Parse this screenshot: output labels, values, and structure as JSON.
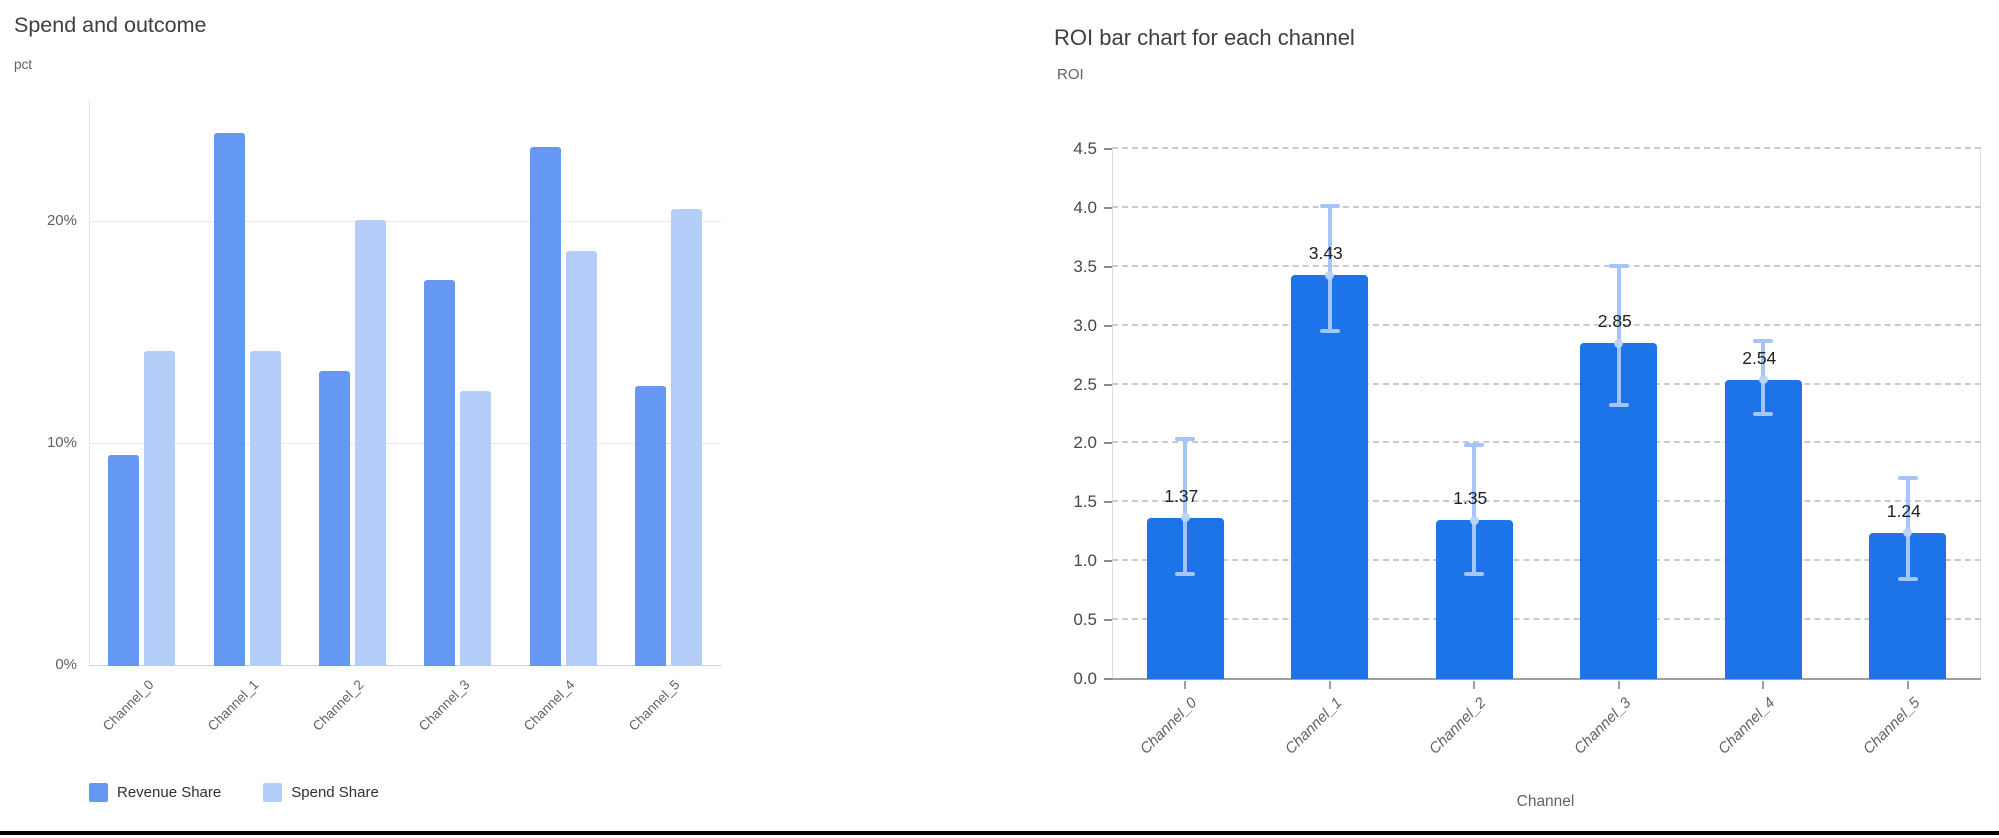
{
  "page": {
    "background": "#ffffff",
    "bottom_rule_color": "#020202"
  },
  "chart_data": [
    {
      "type": "bar",
      "title": "Spend and outcome",
      "ylabel": "pct",
      "xlabel": "",
      "categories": [
        "Channel_0",
        "Channel_1",
        "Channel_2",
        "Channel_3",
        "Channel_4",
        "Channel_5"
      ],
      "series": [
        {
          "name": "Revenue Share",
          "color": "#6498f3",
          "values": [
            9.5,
            24.0,
            13.3,
            17.4,
            23.4,
            12.6
          ]
        },
        {
          "name": "Spend Share",
          "color": "#b5cdf9",
          "values": [
            14.2,
            14.2,
            20.1,
            12.4,
            18.7,
            20.6
          ]
        }
      ],
      "y_ticks": [
        {
          "value": 0,
          "label": "0%"
        },
        {
          "value": 10,
          "label": "10%"
        },
        {
          "value": 20,
          "label": "20%"
        }
      ],
      "ylim": [
        0,
        25.5
      ],
      "unit": "%",
      "grid": "solid-horizontal",
      "legend_position": "bottom-left"
    },
    {
      "type": "bar",
      "title": "ROI bar chart for each channel",
      "ylabel": "ROI",
      "xlabel": "Channel",
      "categories": [
        "Channel_0",
        "Channel_1",
        "Channel_2",
        "Channel_3",
        "Channel_4",
        "Channel_5"
      ],
      "values": [
        1.37,
        3.43,
        1.35,
        2.85,
        2.54,
        1.24
      ],
      "value_labels": [
        "1.37",
        "3.43",
        "1.35",
        "2.85",
        "2.54",
        "1.24"
      ],
      "error_low": [
        0.88,
        2.95,
        0.88,
        2.32,
        2.24,
        0.84
      ],
      "error_high": [
        2.04,
        4.02,
        1.99,
        3.51,
        2.87,
        1.71
      ],
      "y_ticks": [
        {
          "value": 0.0,
          "label": "0.0"
        },
        {
          "value": 0.5,
          "label": "0.5"
        },
        {
          "value": 1.0,
          "label": "1.0"
        },
        {
          "value": 1.5,
          "label": "1.5"
        },
        {
          "value": 2.0,
          "label": "2.0"
        },
        {
          "value": 2.5,
          "label": "2.5"
        },
        {
          "value": 3.0,
          "label": "3.0"
        },
        {
          "value": 3.5,
          "label": "3.5"
        },
        {
          "value": 4.0,
          "label": "4.0"
        },
        {
          "value": 4.5,
          "label": "4.5"
        }
      ],
      "ylim": [
        0,
        4.5
      ],
      "bar_color": "#1d74e8",
      "error_bar_color": "#a5c4f7",
      "error_marker_color": "#bcd3fa",
      "grid": "dashed-horizontal",
      "legend_position": "none"
    }
  ]
}
